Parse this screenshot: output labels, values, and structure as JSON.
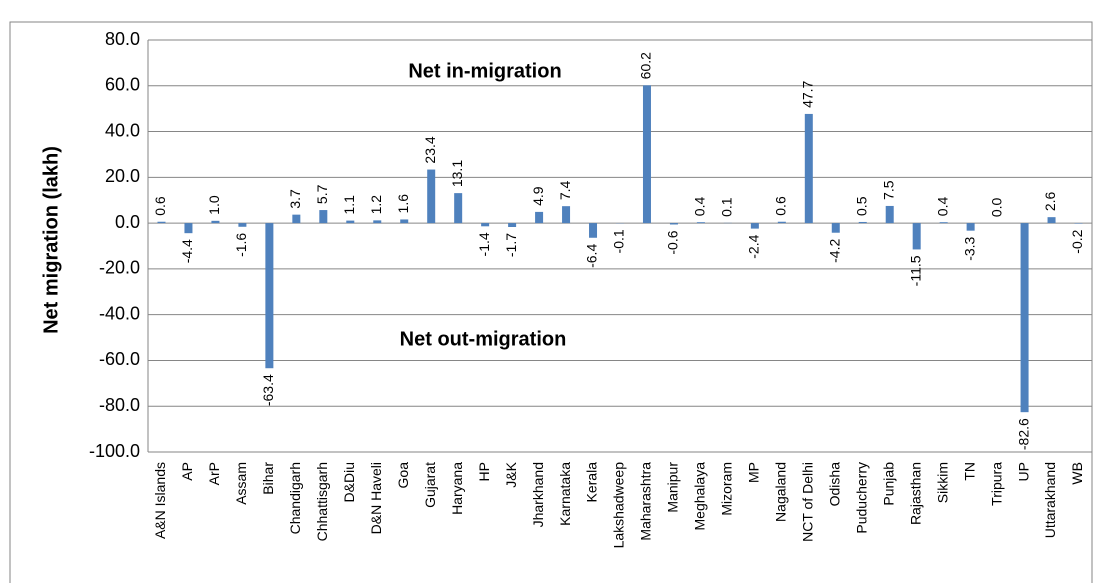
{
  "chart_data": {
    "type": "bar",
    "y_axis_label": "Net migration (lakh)",
    "annotations": [
      "Net in-migration",
      "Net out-migration"
    ],
    "categories": [
      "A&N Islands",
      "AP",
      "ArP",
      "Assam",
      "Bihar",
      "Chandigarh",
      "Chhattisgarh",
      "D&Diu",
      "D&N Haveli",
      "Goa",
      "Gujarat",
      "Haryana",
      "HP",
      "J&K",
      "Jharkhand",
      "Karnataka",
      "Kerala",
      "Lakshadweep",
      "Maharashtra",
      "Manipur",
      "Meghalaya",
      "Mizoram",
      "MP",
      "Nagaland",
      "NCT of Delhi",
      "Odisha",
      "Puducherry",
      "Punjab",
      "Rajasthan",
      "Sikkim",
      "TN",
      "Tripura",
      "UP",
      "Uttarakhand",
      "WB"
    ],
    "values": [
      0.6,
      -4.4,
      1.0,
      -1.6,
      -63.4,
      3.7,
      5.7,
      1.1,
      1.2,
      1.6,
      23.4,
      13.1,
      -1.4,
      -1.7,
      4.9,
      7.4,
      -6.4,
      -0.1,
      60.2,
      -0.6,
      0.4,
      0.1,
      -2.4,
      0.6,
      47.7,
      -4.2,
      0.5,
      7.5,
      -11.5,
      0.4,
      -3.3,
      0.0,
      -82.6,
      2.6,
      -0.2
    ],
    "value_labels": [
      "0.6",
      "-4.4",
      "1.0",
      "-1.6",
      "-63.4",
      "3.7",
      "5.7",
      "1.1",
      "1.2",
      "1.6",
      "23.4",
      "13.1",
      "-1.4",
      "-1.7",
      "4.9",
      "7.4",
      "-6.4",
      "-0.1",
      "60.2",
      "-0.6",
      "0.4",
      "0.1",
      "-2.4",
      "0.6",
      "47.7",
      "-4.2",
      "0.5",
      "7.5",
      "-11.5",
      "0.4",
      "-3.3",
      "0.0",
      "-82.6",
      "2.6",
      "-0.2"
    ],
    "color": "#4f81bd",
    "ylim": [
      -100,
      80
    ],
    "yticks": [
      {
        "value": -100,
        "label": "-100.0"
      },
      {
        "value": -80,
        "label": "-80.0"
      },
      {
        "value": -60,
        "label": "-60.0"
      },
      {
        "value": -40,
        "label": "-40.0"
      },
      {
        "value": -20,
        "label": "-20.0"
      },
      {
        "value": 0,
        "label": "0.0"
      },
      {
        "value": 20,
        "label": "20.0"
      },
      {
        "value": 40,
        "label": "40.0"
      },
      {
        "value": 60,
        "label": "60.0"
      },
      {
        "value": 80,
        "label": "80.0"
      }
    ],
    "grid": true
  }
}
